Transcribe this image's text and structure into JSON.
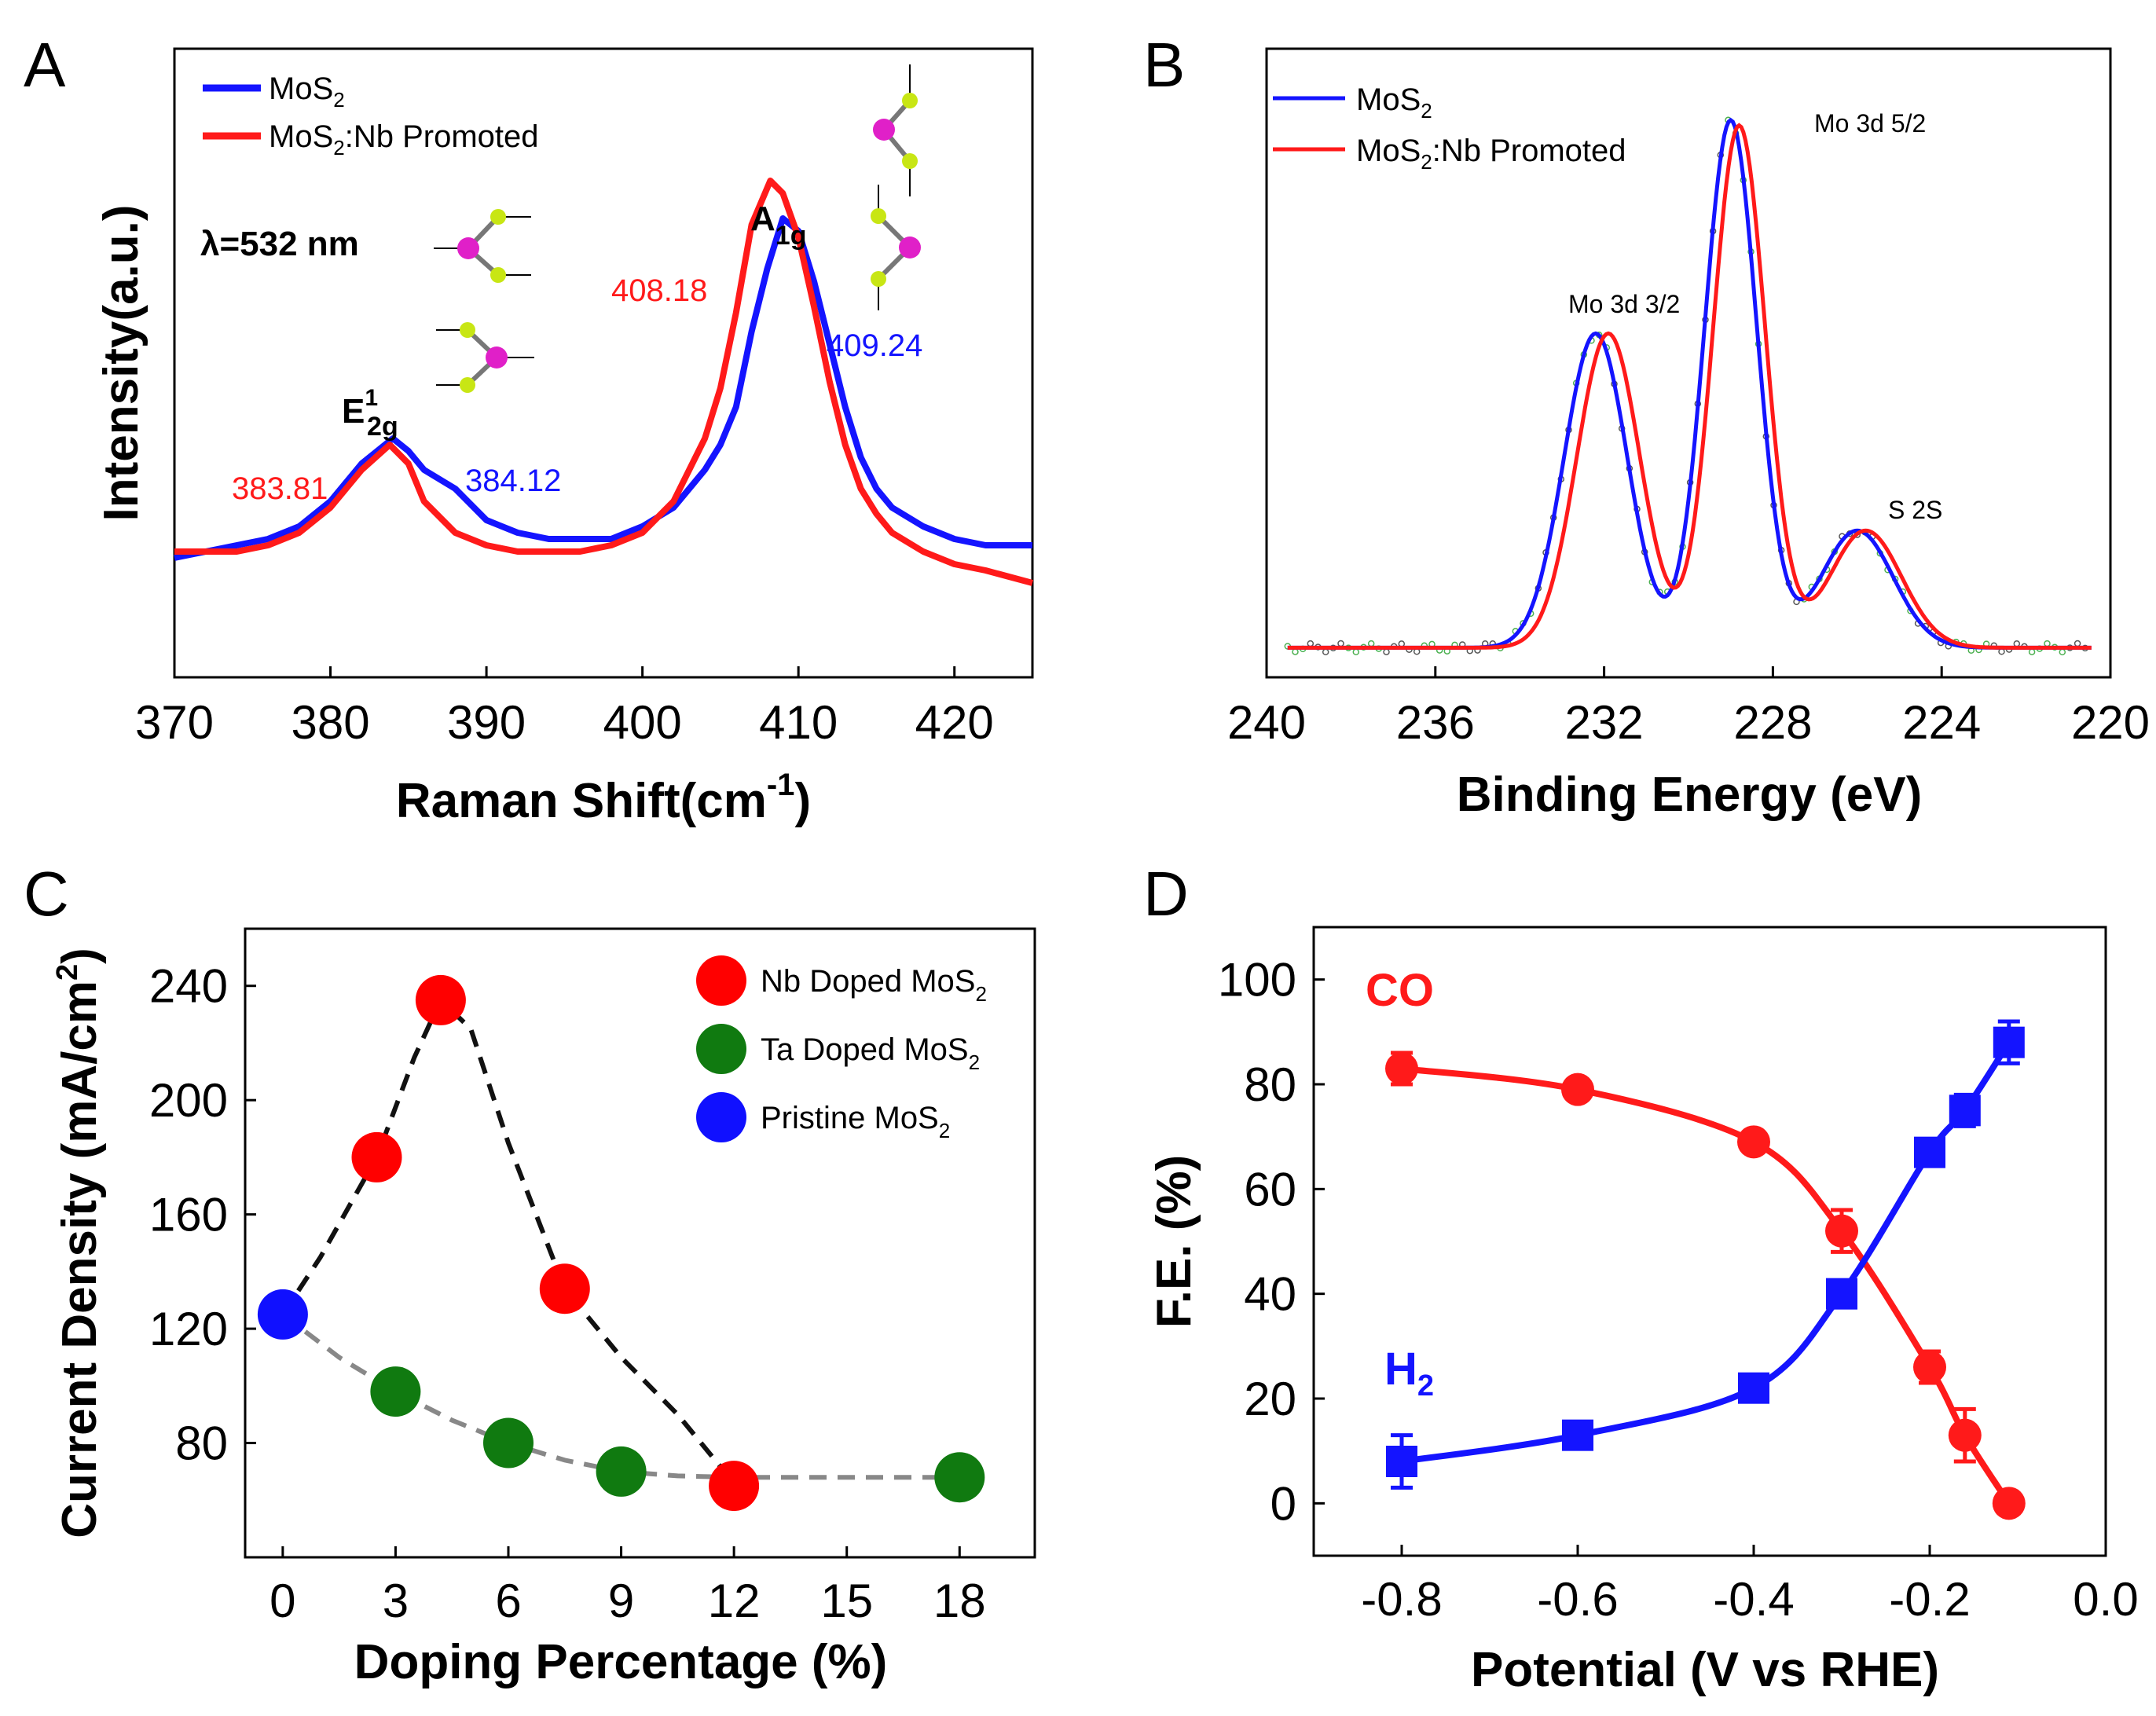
{
  "figure": {
    "panel_labels": [
      "A",
      "B",
      "C",
      "D"
    ]
  },
  "chart_data": [
    {
      "id": "A",
      "type": "line",
      "panel": "A",
      "xlabel_main": "Raman Shift(cm",
      "xlabel_sup": "-1",
      "xlabel_close": ")",
      "ylabel": "Intensity(a.u.)",
      "xlim": [
        370,
        425
      ],
      "ylim": [
        0,
        1
      ],
      "xticks": [
        370,
        380,
        390,
        400,
        410,
        420
      ],
      "legend": [
        {
          "sub_base": "MoS",
          "sub": "2",
          "tail": "",
          "color": "#1414ff"
        },
        {
          "sub_base": "MoS",
          "sub": "2",
          "tail": ":Nb Promoted",
          "color": "#ff1a1a"
        }
      ],
      "series": [
        {
          "name": "MoS2",
          "color": "#1414ff",
          "points": [
            [
              370,
              0.19
            ],
            [
              372,
              0.2
            ],
            [
              374,
              0.21
            ],
            [
              376,
              0.22
            ],
            [
              378,
              0.24
            ],
            [
              380,
              0.28
            ],
            [
              382,
              0.34
            ],
            [
              384,
              0.38
            ],
            [
              385,
              0.36
            ],
            [
              386,
              0.33
            ],
            [
              388,
              0.3
            ],
            [
              390,
              0.25
            ],
            [
              392,
              0.23
            ],
            [
              394,
              0.22
            ],
            [
              396,
              0.22
            ],
            [
              398,
              0.22
            ],
            [
              400,
              0.24
            ],
            [
              402,
              0.27
            ],
            [
              404,
              0.33
            ],
            [
              405,
              0.37
            ],
            [
              406,
              0.43
            ],
            [
              407,
              0.55
            ],
            [
              408,
              0.65
            ],
            [
              409,
              0.73
            ],
            [
              410,
              0.71
            ],
            [
              411,
              0.63
            ],
            [
              412,
              0.53
            ],
            [
              413,
              0.43
            ],
            [
              414,
              0.35
            ],
            [
              415,
              0.3
            ],
            [
              416,
              0.27
            ],
            [
              418,
              0.24
            ],
            [
              420,
              0.22
            ],
            [
              422,
              0.21
            ],
            [
              425,
              0.21
            ]
          ]
        },
        {
          "name": "MoS2:Nb Promoted",
          "color": "#ff1a1a",
          "points": [
            [
              370,
              0.2
            ],
            [
              372,
              0.2
            ],
            [
              374,
              0.2
            ],
            [
              376,
              0.21
            ],
            [
              378,
              0.23
            ],
            [
              380,
              0.27
            ],
            [
              382,
              0.33
            ],
            [
              383.8,
              0.37
            ],
            [
              385,
              0.34
            ],
            [
              386,
              0.28
            ],
            [
              388,
              0.23
            ],
            [
              390,
              0.21
            ],
            [
              392,
              0.2
            ],
            [
              394,
              0.2
            ],
            [
              396,
              0.2
            ],
            [
              398,
              0.21
            ],
            [
              400,
              0.23
            ],
            [
              402,
              0.28
            ],
            [
              404,
              0.38
            ],
            [
              405,
              0.46
            ],
            [
              406,
              0.58
            ],
            [
              407,
              0.72
            ],
            [
              408.2,
              0.79
            ],
            [
              409,
              0.77
            ],
            [
              410,
              0.7
            ],
            [
              411,
              0.59
            ],
            [
              412,
              0.47
            ],
            [
              413,
              0.37
            ],
            [
              414,
              0.3
            ],
            [
              415,
              0.26
            ],
            [
              416,
              0.23
            ],
            [
              418,
              0.2
            ],
            [
              420,
              0.18
            ],
            [
              422,
              0.17
            ],
            [
              425,
              0.15
            ]
          ]
        }
      ],
      "annotations": [
        {
          "text": "383.81",
          "color": "#ff1a1a"
        },
        {
          "text": "384.12",
          "color": "#1414ff"
        },
        {
          "text": "408.18",
          "color": "#ff1a1a"
        },
        {
          "text": "409.24",
          "color": "#1414ff"
        },
        {
          "text": "λ=532 nm",
          "color": "#000000"
        }
      ],
      "peak_labels": [
        {
          "base": "E",
          "sup": "1",
          "sub": "2g"
        },
        {
          "base": "A",
          "sup": "",
          "sub": "1g"
        }
      ]
    },
    {
      "id": "B",
      "type": "line",
      "panel": "B",
      "xlabel": "Binding Energy (eV)",
      "xlim": [
        240,
        220
      ],
      "ylim": [
        0,
        1
      ],
      "xticks": [
        240,
        236,
        232,
        228,
        224,
        220
      ],
      "legend": [
        {
          "sub_base": "MoS",
          "sub": "2",
          "tail": "",
          "color": "#1414ff"
        },
        {
          "sub_base": "MoS",
          "sub": "2",
          "tail": ":Nb Promoted",
          "color": "#ff1a1a"
        }
      ],
      "series": [
        {
          "name": "MoS2",
          "color": "#1414ff",
          "peaks": [
            [
              232.2,
              0.59,
              0.75
            ],
            [
              229.0,
              0.99,
              0.62
            ],
            [
              226.0,
              0.22,
              0.85
            ]
          ],
          "baseline": 0.02
        },
        {
          "name": "MoS2:Nb Promoted",
          "color": "#ff1a1a",
          "peaks": [
            [
              231.9,
              0.59,
              0.75
            ],
            [
              228.8,
              0.98,
              0.62
            ],
            [
              225.8,
              0.22,
              0.85
            ]
          ],
          "baseline": 0.02
        }
      ],
      "annotations": [
        {
          "text": "Mo 3d 3/2"
        },
        {
          "text": "Mo 3d 5/2"
        },
        {
          "text": "S 2S"
        }
      ]
    },
    {
      "id": "C",
      "type": "scatter",
      "panel": "C",
      "xlabel": "Doping Percentage (%)",
      "ylabel_main": "Current Density (mA/cm",
      "ylabel_sup": "2",
      "ylabel_close": ")",
      "xlim": [
        -1,
        20
      ],
      "ylim": [
        40,
        260
      ],
      "xticks": [
        0,
        3,
        6,
        9,
        12,
        15,
        18
      ],
      "yticks": [
        80,
        120,
        160,
        200,
        240
      ],
      "legend": [
        {
          "sub_base": "Nb Doped MoS",
          "sub": "2",
          "color": "#ff0000"
        },
        {
          "sub_base": "Ta Doped MoS",
          "sub": "2",
          "color": "#107a10"
        },
        {
          "sub_base": "Pristine MoS",
          "sub": "2",
          "color": "#1010ff"
        }
      ],
      "series": [
        {
          "name": "Nb Doped MoS2",
          "color": "#ff0000",
          "points": [
            [
              2.5,
              180
            ],
            [
              4.2,
              235
            ],
            [
              7.5,
              134
            ],
            [
              12,
              65
            ]
          ]
        },
        {
          "name": "Ta Doped MoS2",
          "color": "#107a10",
          "points": [
            [
              3,
              98
            ],
            [
              6,
              80
            ],
            [
              9,
              70
            ],
            [
              18,
              68
            ]
          ]
        },
        {
          "name": "Pristine MoS2",
          "color": "#1010ff",
          "points": [
            [
              0,
              125
            ]
          ]
        }
      ],
      "trend_lines": [
        {
          "color": "#111111",
          "points": [
            [
              0,
              125
            ],
            [
              1,
              145
            ],
            [
              2.5,
              180
            ],
            [
              3.5,
              215
            ],
            [
              4.2,
              235
            ],
            [
              5,
              225
            ],
            [
              6,
              185
            ],
            [
              7.5,
              134
            ],
            [
              9,
              110
            ],
            [
              10.5,
              90
            ],
            [
              12,
              66
            ]
          ]
        },
        {
          "color": "#888888",
          "points": [
            [
              0,
              125
            ],
            [
              1.5,
              110
            ],
            [
              3,
              98
            ],
            [
              4.5,
              88
            ],
            [
              6,
              80
            ],
            [
              7.5,
              74
            ],
            [
              9,
              70
            ],
            [
              10.5,
              68.5
            ],
            [
              12,
              68
            ],
            [
              15,
              68
            ],
            [
              18,
              68
            ]
          ]
        }
      ]
    },
    {
      "id": "D",
      "type": "line",
      "panel": "D",
      "xlabel": "Potential (V vs RHE)",
      "ylabel": "F.E. (%)",
      "xlim": [
        -0.9,
        0.0
      ],
      "ylim": [
        -10,
        110
      ],
      "xticks": [
        -0.8,
        -0.6,
        -0.4,
        -0.2,
        0.0
      ],
      "xtick_labels": [
        "-0.8",
        "-0.6",
        "-0.4",
        "-0.2",
        "0.0"
      ],
      "yticks": [
        0,
        20,
        40,
        60,
        80,
        100
      ],
      "series": [
        {
          "name": "CO",
          "color": "#ff1a1a",
          "marker": "circle",
          "points": [
            [
              -0.8,
              83
            ],
            [
              -0.6,
              79
            ],
            [
              -0.4,
              69
            ],
            [
              -0.3,
              52
            ],
            [
              -0.2,
              26
            ],
            [
              -0.16,
              13
            ],
            [
              -0.11,
              0
            ]
          ],
          "errors": [
            3,
            2,
            2,
            4,
            3,
            5,
            1
          ]
        },
        {
          "name": "H2",
          "color": "#1414ff",
          "marker": "square",
          "points": [
            [
              -0.8,
              8
            ],
            [
              -0.6,
              13
            ],
            [
              -0.4,
              22
            ],
            [
              -0.3,
              40
            ],
            [
              -0.2,
              67
            ],
            [
              -0.16,
              75
            ],
            [
              -0.11,
              88
            ]
          ],
          "errors": [
            5,
            2,
            2,
            2,
            2,
            3,
            4
          ]
        }
      ],
      "labels": [
        {
          "text": "CO",
          "color": "#ff1a1a"
        },
        {
          "base": "H",
          "sub": "2",
          "color": "#1414ff"
        }
      ]
    }
  ]
}
